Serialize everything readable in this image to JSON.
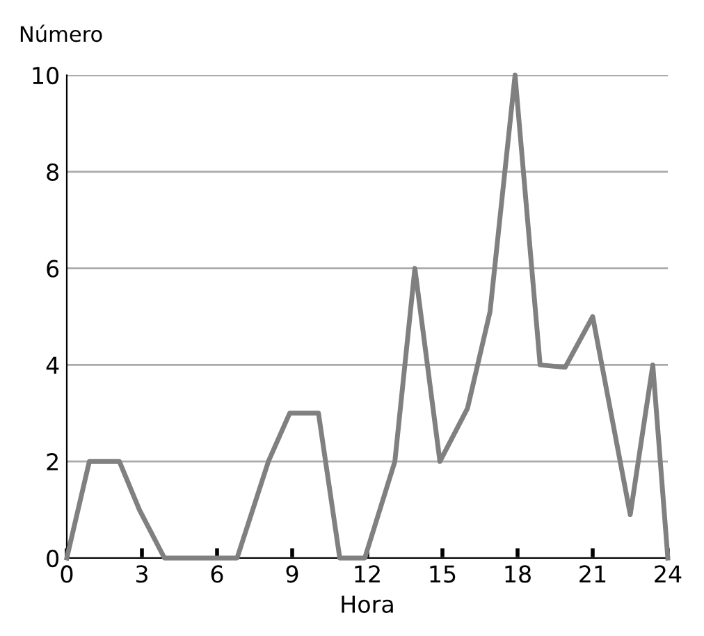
{
  "chart_data": {
    "type": "line",
    "ylabel": "Número",
    "xlabel": "Hora",
    "x": [
      0,
      0.9,
      2.1,
      2.9,
      3.9,
      6.8,
      8.05,
      8.9,
      10.05,
      10.9,
      11.9,
      13.1,
      13.9,
      14.9,
      16,
      16.9,
      17.9,
      18.9,
      19.9,
      21,
      22.5,
      23.4,
      24
    ],
    "series": [
      {
        "color": "#808080",
        "values": [
          0,
          2,
          2,
          1,
          0,
          0,
          2,
          3,
          3,
          0,
          0,
          2,
          6,
          2,
          3.1,
          5.1,
          10,
          4,
          3.95,
          5,
          0.9,
          4,
          0
        ]
      }
    ],
    "xlim": [
      0,
      24
    ],
    "ylim": [
      0,
      10
    ],
    "xticks": [
      0,
      3,
      6,
      9,
      12,
      15,
      18,
      21,
      24
    ],
    "yticks": [
      0,
      2,
      4,
      6,
      8,
      10
    ],
    "grid": "y",
    "marker": "none",
    "line_style": "solid"
  }
}
